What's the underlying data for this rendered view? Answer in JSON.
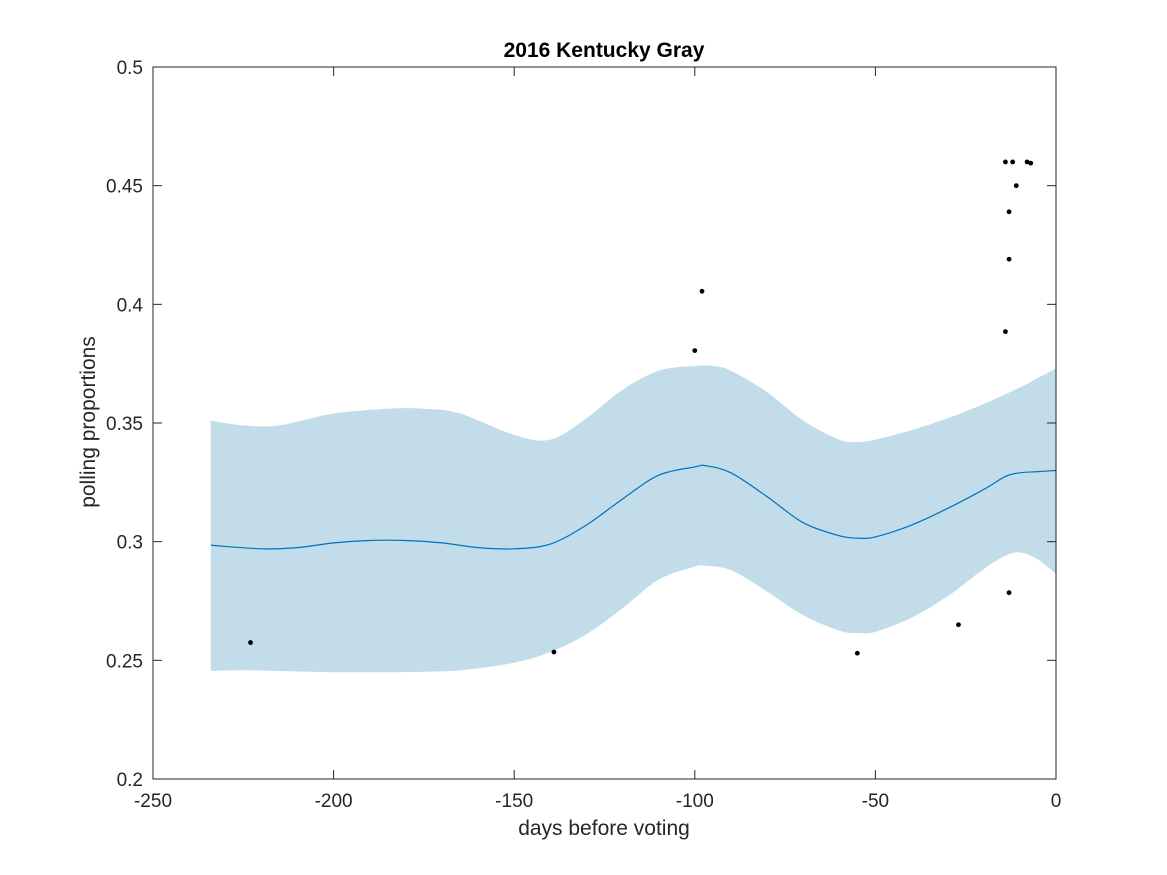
{
  "chart_data": {
    "type": "line",
    "title": "2016 Kentucky Gray",
    "xlabel": "days before voting",
    "ylabel": "polling proportions",
    "xlim": [
      -250,
      0
    ],
    "ylim": [
      0.2,
      0.5
    ],
    "xticks": [
      -250,
      -200,
      -150,
      -100,
      -50,
      0
    ],
    "yticks": [
      0.2,
      0.25,
      0.3,
      0.35,
      0.4,
      0.45,
      0.5
    ],
    "xtick_labels": [
      "-250",
      "-200",
      "-150",
      "-100",
      "-50",
      "0"
    ],
    "ytick_labels": [
      "0.2",
      "0.25",
      "0.3",
      "0.35",
      "0.4",
      "0.45",
      "0.5"
    ],
    "grid": false,
    "colors": {
      "band": "#c2dcea",
      "mean_line": "#0072bd",
      "points": "#000000",
      "axes": "#262626"
    },
    "series": [
      {
        "kind": "mean_line",
        "x": [
          -234,
          -220,
          -210,
          -200,
          -190,
          -180,
          -170,
          -160,
          -150,
          -140,
          -130,
          -120,
          -110,
          -100,
          -97,
          -90,
          -80,
          -70,
          -60,
          -55,
          -50,
          -40,
          -30,
          -20,
          -14,
          -10,
          -5,
          0
        ],
        "y": [
          0.2985,
          0.297,
          0.2975,
          0.2995,
          0.3005,
          0.3005,
          0.2995,
          0.2975,
          0.297,
          0.299,
          0.307,
          0.318,
          0.328,
          0.3315,
          0.332,
          0.329,
          0.319,
          0.308,
          0.3025,
          0.3015,
          0.302,
          0.307,
          0.314,
          0.322,
          0.3275,
          0.329,
          0.3295,
          0.33
        ]
      },
      {
        "kind": "band_upper",
        "x": [
          -234,
          -225,
          -215,
          -200,
          -185,
          -175,
          -165,
          -150,
          -140,
          -130,
          -120,
          -110,
          -100,
          -95,
          -90,
          -80,
          -70,
          -60,
          -55,
          -50,
          -40,
          -30,
          -20,
          -10,
          0
        ],
        "y": [
          0.351,
          0.349,
          0.349,
          0.354,
          0.356,
          0.356,
          0.354,
          0.345,
          0.343,
          0.352,
          0.364,
          0.372,
          0.374,
          0.374,
          0.372,
          0.363,
          0.351,
          0.343,
          0.342,
          0.343,
          0.347,
          0.352,
          0.358,
          0.365,
          0.373
        ]
      },
      {
        "kind": "band_lower",
        "x": [
          -234,
          -225,
          -215,
          -200,
          -185,
          -175,
          -165,
          -150,
          -140,
          -130,
          -120,
          -110,
          -100,
          -97,
          -90,
          -80,
          -70,
          -60,
          -55,
          -50,
          -40,
          -30,
          -20,
          -14,
          -10,
          -5,
          0
        ],
        "y": [
          0.2455,
          0.2458,
          0.2455,
          0.245,
          0.245,
          0.2452,
          0.2458,
          0.249,
          0.2535,
          0.261,
          0.272,
          0.284,
          0.2895,
          0.2898,
          0.288,
          0.279,
          0.269,
          0.2625,
          0.2615,
          0.262,
          0.268,
          0.277,
          0.2885,
          0.294,
          0.2955,
          0.2925,
          0.2865
        ]
      },
      {
        "kind": "scatter",
        "x": [
          -223,
          -139,
          -100,
          -98,
          -55,
          -27,
          -14,
          -14,
          -13,
          -13,
          -13,
          -12,
          -11,
          -8,
          -7
        ],
        "y": [
          0.2575,
          0.2535,
          0.3805,
          0.4055,
          0.253,
          0.265,
          0.3885,
          0.46,
          0.419,
          0.439,
          0.2785,
          0.46,
          0.45,
          0.46,
          0.4595
        ]
      }
    ]
  }
}
